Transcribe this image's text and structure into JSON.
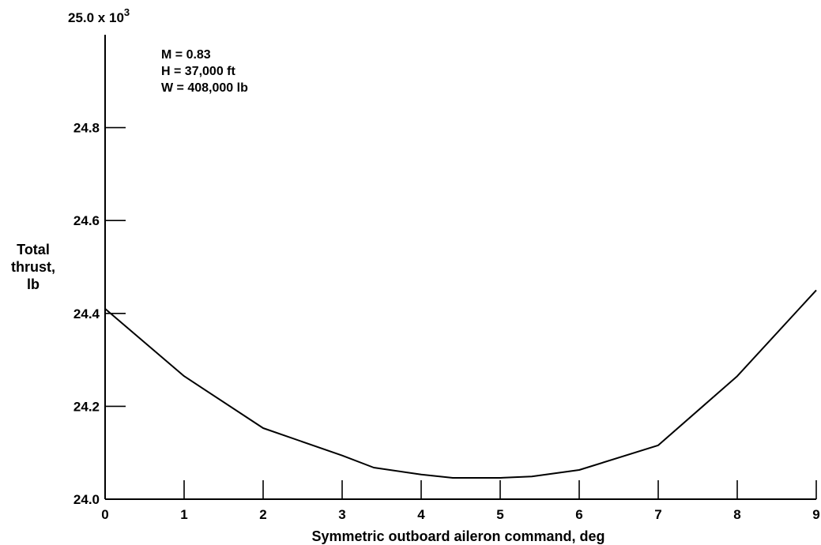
{
  "chart_data": {
    "type": "line",
    "title": "",
    "xlabel": "Symmetric outboard aileron command, deg",
    "ylabel_lines": [
      "Total",
      "thrust,",
      "lb"
    ],
    "xlim": [
      0,
      9
    ],
    "ylim": [
      24.0,
      25.0
    ],
    "x_ticks": [
      0,
      1,
      2,
      3,
      4,
      5,
      6,
      7,
      8,
      9
    ],
    "x_tick_labels": [
      "0",
      "1",
      "2",
      "3",
      "4",
      "5",
      "6",
      "7",
      "8",
      "9"
    ],
    "y_ticks": [
      24.0,
      24.2,
      24.4,
      24.6,
      24.8,
      25.0
    ],
    "y_tick_labels": [
      "24.0",
      "24.2",
      "24.4",
      "24.6",
      "24.8",
      "25.0 x 10"
    ],
    "y_scale_exponent": "3",
    "annotations": [
      "M = 0.83",
      "H = 37,000 ft",
      "W = 408,000 lb"
    ],
    "grid": false,
    "series": [
      {
        "x": [
          0,
          1,
          2,
          3,
          3.4,
          4,
          4.4,
          5,
          5.4,
          6,
          7,
          8,
          9
        ],
        "y": [
          24.41,
          24.265,
          24.153,
          24.094,
          24.068,
          24.053,
          24.046,
          24.046,
          24.049,
          24.063,
          24.116,
          24.265,
          24.45
        ]
      }
    ]
  }
}
